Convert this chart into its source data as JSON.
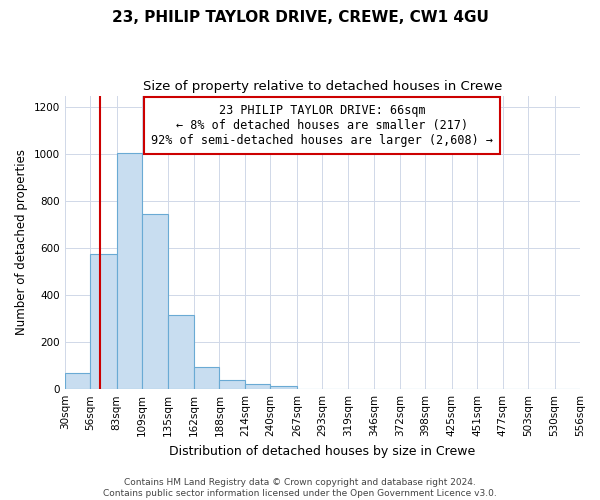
{
  "title": "23, PHILIP TAYLOR DRIVE, CREWE, CW1 4GU",
  "subtitle": "Size of property relative to detached houses in Crewe",
  "xlabel": "Distribution of detached houses by size in Crewe",
  "ylabel": "Number of detached properties",
  "bar_color": "#c8ddf0",
  "bar_edge_color": "#6aaad4",
  "vline_color": "#cc0000",
  "vline_x": 66,
  "annotation_line1": "23 PHILIP TAYLOR DRIVE: 66sqm",
  "annotation_line2": "← 8% of detached houses are smaller (217)",
  "annotation_line3": "92% of semi-detached houses are larger (2,608) →",
  "bins": [
    30,
    56,
    83,
    109,
    135,
    162,
    188,
    214,
    240,
    267,
    293,
    319,
    346,
    372,
    398,
    425,
    451,
    477,
    503,
    530,
    556
  ],
  "bar_heights": [
    70,
    575,
    1005,
    745,
    315,
    95,
    40,
    20,
    12,
    0,
    0,
    0,
    0,
    0,
    0,
    0,
    0,
    0,
    0,
    0
  ],
  "ylim": [
    0,
    1250
  ],
  "yticks": [
    0,
    200,
    400,
    600,
    800,
    1000,
    1200
  ],
  "footer_text": "Contains HM Land Registry data © Crown copyright and database right 2024.\nContains public sector information licensed under the Open Government Licence v3.0.",
  "annotation_box_edge_color": "#cc0000",
  "annotation_fontsize": 8.5,
  "title_fontsize": 11,
  "subtitle_fontsize": 9.5,
  "tick_label_fontsize": 7.5,
  "ylabel_fontsize": 8.5,
  "xlabel_fontsize": 9,
  "footer_fontsize": 6.5
}
